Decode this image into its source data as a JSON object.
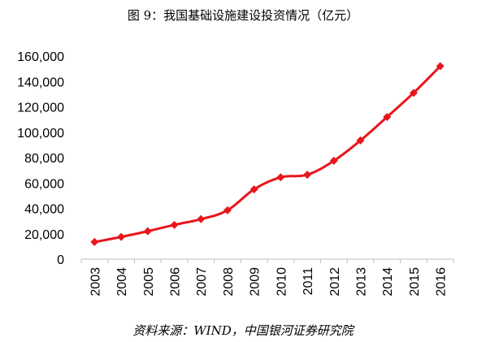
{
  "chart_data": {
    "type": "line",
    "title": "图 9：我国基础设施建设投资情况（亿元）",
    "xlabel": "",
    "ylabel": "",
    "categories": [
      "2003",
      "2004",
      "2005",
      "2006",
      "2007",
      "2008",
      "2009",
      "2010",
      "2011",
      "2012",
      "2013",
      "2014",
      "2015",
      "2016"
    ],
    "series": [
      {
        "values": [
          13500,
          17500,
          22000,
          27000,
          31500,
          38500,
          55000,
          64500,
          66500,
          77500,
          93500,
          112000,
          131000,
          152000
        ],
        "color": "#e8161c",
        "marker": "diamond"
      }
    ],
    "ylim": [
      0,
      160000
    ],
    "yticks": [
      0,
      20000,
      40000,
      60000,
      80000,
      100000,
      120000,
      140000,
      160000
    ],
    "ytick_labels": [
      "0",
      "20,000",
      "40,000",
      "60,000",
      "80,000",
      "100,000",
      "120,000",
      "140,000",
      "160,000"
    ],
    "grid": false,
    "legend": "none"
  },
  "source": "资料来源：WIND，中国银河证券研究院"
}
